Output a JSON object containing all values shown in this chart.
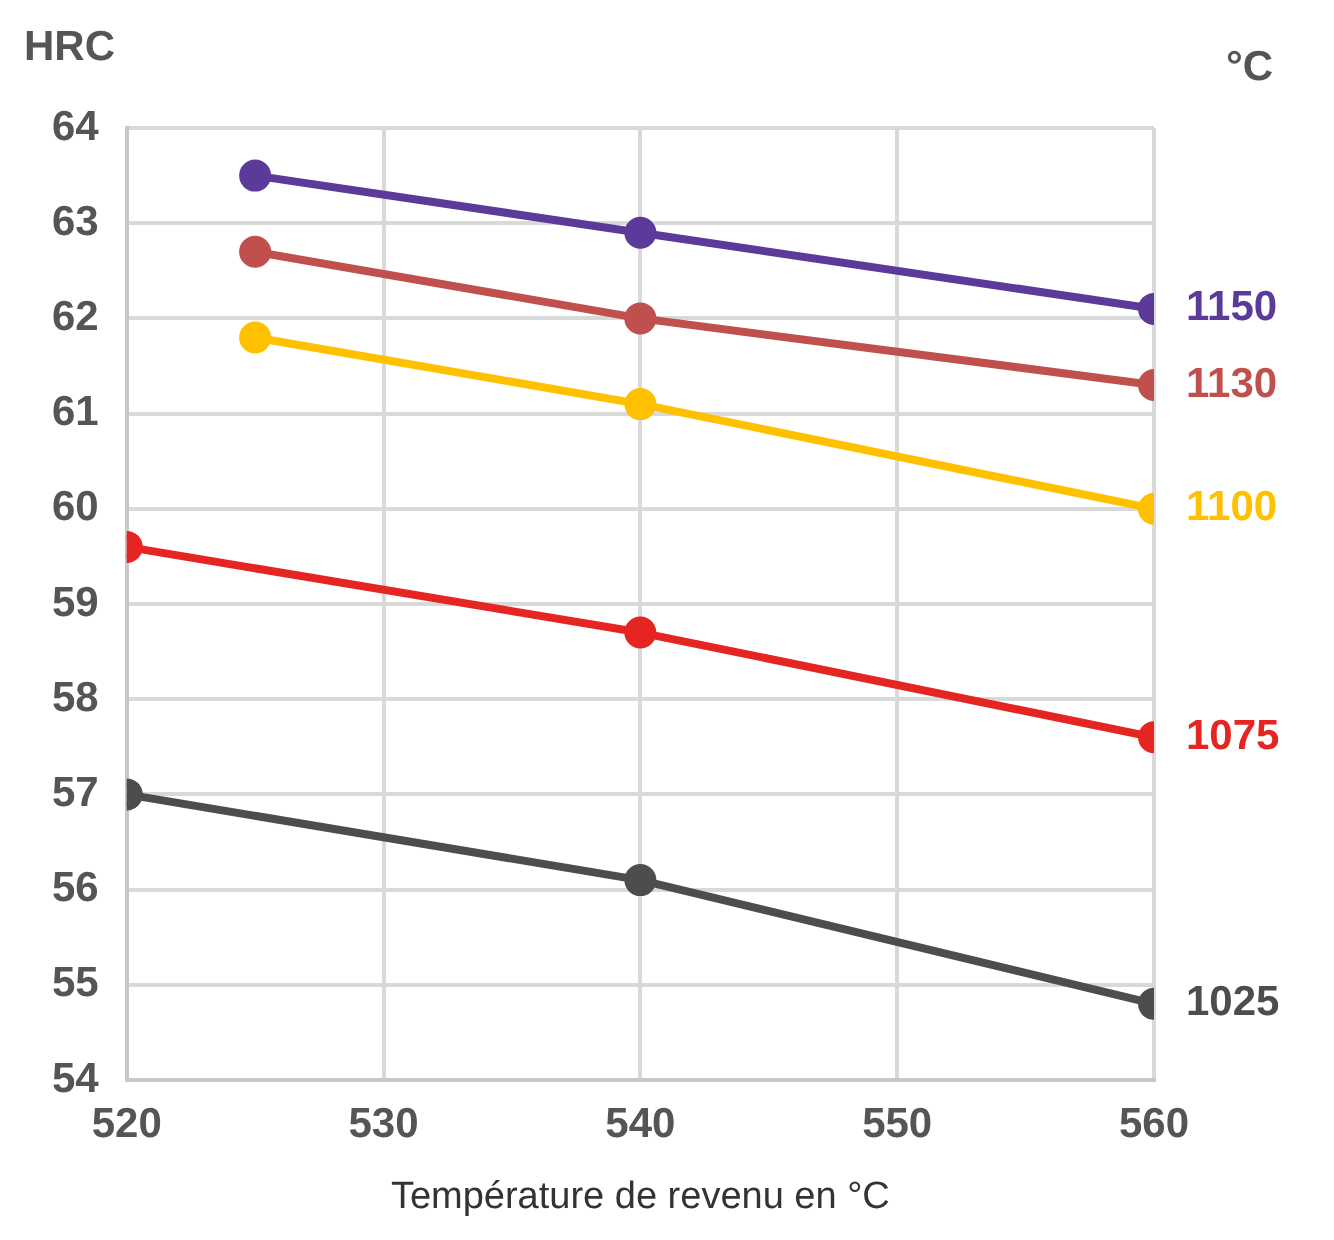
{
  "chart_data": {
    "type": "line",
    "xlabel": "Température de revenu en °C",
    "ylabel": "HRC",
    "legend_title": "°C",
    "xlim": [
      520,
      560
    ],
    "xticks": [
      520,
      530,
      540,
      550,
      560
    ],
    "ylim": [
      54,
      64
    ],
    "yticks": [
      54,
      55,
      56,
      57,
      58,
      59,
      60,
      61,
      62,
      63,
      64
    ],
    "grid": true,
    "marker": "circle",
    "line_style": "solid",
    "series": [
      {
        "name": "1150",
        "color": "#5b3a9a",
        "x": [
          525,
          540,
          560
        ],
        "values": [
          63.5,
          62.9,
          62.1
        ]
      },
      {
        "name": "1130",
        "color": "#c0504d",
        "x": [
          525,
          540,
          560
        ],
        "values": [
          62.7,
          62.0,
          61.3
        ]
      },
      {
        "name": "1100",
        "color": "#ffc000",
        "x": [
          525,
          540,
          560
        ],
        "values": [
          61.8,
          61.1,
          60.0
        ]
      },
      {
        "name": "1075",
        "color": "#e52521",
        "x": [
          520,
          540,
          560
        ],
        "values": [
          59.6,
          58.7,
          57.6
        ]
      },
      {
        "name": "1025",
        "color": "#4d4d4d",
        "x": [
          520,
          540,
          560
        ],
        "values": [
          57.0,
          56.1,
          54.8
        ]
      }
    ]
  }
}
